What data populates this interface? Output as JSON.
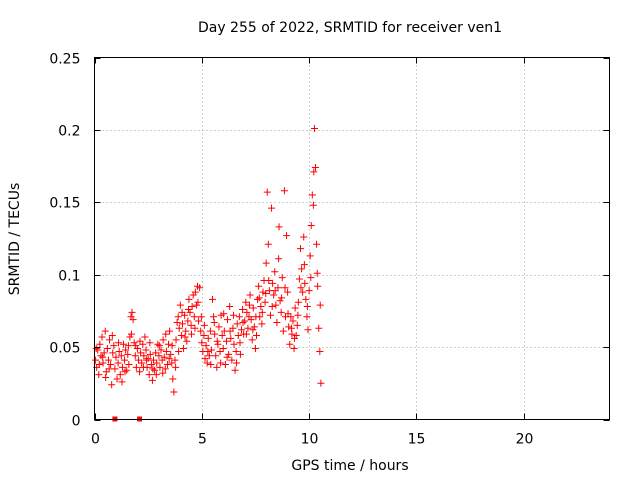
{
  "chart_data": {
    "type": "scatter",
    "title": "Day 255 of 2022, SRMTID for receiver ven1",
    "xlabel": "GPS time / hours",
    "ylabel": "SRMTID / TECUs",
    "xlim": [
      0,
      24
    ],
    "ylim": [
      0,
      0.25
    ],
    "x_ticks": [
      0,
      5,
      10,
      15,
      20
    ],
    "x_tick_labels": [
      "0",
      "5",
      "10",
      "15",
      "20"
    ],
    "y_ticks": [
      0,
      0.05,
      0.1,
      0.15,
      0.2,
      0.25
    ],
    "y_tick_labels": [
      "0",
      "0.05",
      "0.1",
      "0.15",
      "0.2",
      "0.25"
    ],
    "grid": true,
    "marker": "+",
    "colors": {
      "series": "#ff0000",
      "grid": "#a0a0a0",
      "axis": "#000000"
    },
    "baseline_markers_x": [
      0.95,
      2.1
    ],
    "series": [
      {
        "name": "ven1",
        "points": [
          [
            0.05,
            0.041
          ],
          [
            0.1,
            0.036
          ],
          [
            0.15,
            0.048
          ],
          [
            0.2,
            0.031
          ],
          [
            0.25,
            0.052
          ],
          [
            0.3,
            0.044
          ],
          [
            0.35,
            0.057
          ],
          [
            0.4,
            0.039
          ],
          [
            0.45,
            0.046
          ],
          [
            0.5,
            0.061
          ],
          [
            0.55,
            0.033
          ],
          [
            0.6,
            0.049
          ],
          [
            0.65,
            0.041
          ],
          [
            0.7,
            0.055
          ],
          [
            0.75,
            0.038
          ],
          [
            0.8,
            0.024
          ],
          [
            0.85,
            0.046
          ],
          [
            0.9,
            0.051
          ],
          [
            0.95,
            0.035
          ],
          [
            1.0,
            0.043
          ],
          [
            1.05,
            0.028
          ],
          [
            1.1,
            0.039
          ],
          [
            1.15,
            0.047
          ],
          [
            1.2,
            0.031
          ],
          [
            1.25,
            0.044
          ],
          [
            1.3,
            0.036
          ],
          [
            1.35,
            0.052
          ],
          [
            1.4,
            0.041
          ],
          [
            1.45,
            0.048
          ],
          [
            1.5,
            0.034
          ],
          [
            1.55,
            0.045
          ],
          [
            1.6,
            0.038
          ],
          [
            1.65,
            0.057
          ],
          [
            1.7,
            0.071
          ],
          [
            1.75,
            0.074
          ],
          [
            1.8,
            0.069
          ],
          [
            1.85,
            0.053
          ],
          [
            1.9,
            0.044
          ],
          [
            1.95,
            0.036
          ],
          [
            2.0,
            0.049
          ],
          [
            2.05,
            0.041
          ],
          [
            2.1,
            0.033
          ],
          [
            2.15,
            0.046
          ],
          [
            2.2,
            0.039
          ],
          [
            2.25,
            0.052
          ],
          [
            2.3,
            0.044
          ],
          [
            2.35,
            0.057
          ],
          [
            2.4,
            0.048
          ],
          [
            2.45,
            0.036
          ],
          [
            2.5,
            0.042
          ],
          [
            2.55,
            0.031
          ],
          [
            2.6,
            0.045
          ],
          [
            2.65,
            0.038
          ],
          [
            2.7,
            0.027
          ],
          [
            2.75,
            0.041
          ],
          [
            2.8,
            0.034
          ],
          [
            2.85,
            0.046
          ],
          [
            2.9,
            0.039
          ],
          [
            2.95,
            0.052
          ],
          [
            3.0,
            0.044
          ],
          [
            3.05,
            0.036
          ],
          [
            3.1,
            0.048
          ],
          [
            3.15,
            0.041
          ],
          [
            3.2,
            0.055
          ],
          [
            3.25,
            0.043
          ],
          [
            3.3,
            0.035
          ],
          [
            3.35,
            0.047
          ],
          [
            3.4,
            0.038
          ],
          [
            3.45,
            0.052
          ],
          [
            3.5,
            0.061
          ],
          [
            3.55,
            0.045
          ],
          [
            3.6,
            0.039
          ],
          [
            3.65,
            0.028
          ],
          [
            3.7,
            0.019
          ],
          [
            3.75,
            0.041
          ],
          [
            3.8,
            0.055
          ],
          [
            3.85,
            0.067
          ],
          [
            3.9,
            0.071
          ],
          [
            3.95,
            0.063
          ],
          [
            4.0,
            0.079
          ],
          [
            4.05,
            0.058
          ],
          [
            4.1,
            0.066
          ],
          [
            4.15,
            0.049
          ],
          [
            4.2,
            0.072
          ],
          [
            4.25,
            0.061
          ],
          [
            4.3,
            0.054
          ],
          [
            4.35,
            0.068
          ],
          [
            4.4,
            0.083
          ],
          [
            4.45,
            0.074
          ],
          [
            4.5,
            0.065
          ],
          [
            4.55,
            0.078
          ],
          [
            4.6,
            0.086
          ],
          [
            4.65,
            0.071
          ],
          [
            4.7,
            0.088
          ],
          [
            4.75,
            0.079
          ],
          [
            4.8,
            0.092
          ],
          [
            4.85,
            0.068
          ],
          [
            4.9,
            0.091
          ],
          [
            4.95,
            0.061
          ],
          [
            5.0,
            0.053
          ],
          [
            5.05,
            0.047
          ],
          [
            5.1,
            0.058
          ],
          [
            5.15,
            0.042
          ],
          [
            5.2,
            0.051
          ],
          [
            5.25,
            0.039
          ],
          [
            5.3,
            0.056
          ],
          [
            5.35,
            0.044
          ],
          [
            5.4,
            0.061
          ],
          [
            5.45,
            0.048
          ],
          [
            5.5,
            0.083
          ],
          [
            5.55,
            0.071
          ],
          [
            5.6,
            0.059
          ],
          [
            5.65,
            0.044
          ],
          [
            5.7,
            0.036
          ],
          [
            5.75,
            0.052
          ],
          [
            5.8,
            0.064
          ],
          [
            5.85,
            0.047
          ],
          [
            5.9,
            0.072
          ],
          [
            5.95,
            0.058
          ],
          [
            6.0,
            0.049
          ],
          [
            6.05,
            0.061
          ],
          [
            6.1,
            0.038
          ],
          [
            6.15,
            0.054
          ],
          [
            6.2,
            0.069
          ],
          [
            6.25,
            0.045
          ],
          [
            6.3,
            0.078
          ],
          [
            6.35,
            0.056
          ],
          [
            6.4,
            0.041
          ],
          [
            6.45,
            0.063
          ],
          [
            6.5,
            0.052
          ],
          [
            6.55,
            0.034
          ],
          [
            6.6,
            0.047
          ],
          [
            6.65,
            0.066
          ],
          [
            6.7,
            0.058
          ],
          [
            6.75,
            0.071
          ],
          [
            6.8,
            0.045
          ],
          [
            6.85,
            0.062
          ],
          [
            6.9,
            0.076
          ],
          [
            6.95,
            0.059
          ],
          [
            7.0,
            0.068
          ],
          [
            7.05,
            0.081
          ],
          [
            7.1,
            0.074
          ],
          [
            7.15,
            0.063
          ],
          [
            7.2,
            0.071
          ],
          [
            7.25,
            0.086
          ],
          [
            7.3,
            0.069
          ],
          [
            7.35,
            0.055
          ],
          [
            7.4,
            0.077
          ],
          [
            7.45,
            0.064
          ],
          [
            7.5,
            0.049
          ],
          [
            7.55,
            0.058
          ],
          [
            7.6,
            0.083
          ],
          [
            7.65,
            0.092
          ],
          [
            7.7,
            0.071
          ],
          [
            7.75,
            0.078
          ],
          [
            7.8,
            0.066
          ],
          [
            7.85,
            0.088
          ],
          [
            7.9,
            0.096
          ],
          [
            7.95,
            0.081
          ],
          [
            8.0,
            0.108
          ],
          [
            8.05,
            0.157
          ],
          [
            8.1,
            0.121
          ],
          [
            8.15,
            0.089
          ],
          [
            8.2,
            0.072
          ],
          [
            8.25,
            0.146
          ],
          [
            8.3,
            0.094
          ],
          [
            8.35,
            0.086
          ],
          [
            8.4,
            0.102
          ],
          [
            8.45,
            0.079
          ],
          [
            8.5,
            0.067
          ],
          [
            8.55,
            0.091
          ],
          [
            8.6,
            0.133
          ],
          [
            8.65,
            0.082
          ],
          [
            8.7,
            0.074
          ],
          [
            8.75,
            0.098
          ],
          [
            8.8,
            0.061
          ],
          [
            8.85,
            0.158
          ],
          [
            8.9,
            0.071
          ],
          [
            8.95,
            0.127
          ],
          [
            9.0,
            0.088
          ],
          [
            9.05,
            0.064
          ],
          [
            9.1,
            0.052
          ],
          [
            9.15,
            0.071
          ],
          [
            9.2,
            0.059
          ],
          [
            9.25,
            0.068
          ],
          [
            9.3,
            0.049
          ],
          [
            9.35,
            0.077
          ],
          [
            9.4,
            0.058
          ],
          [
            9.45,
            0.065
          ],
          [
            9.5,
            0.081
          ],
          [
            9.55,
            0.097
          ],
          [
            9.6,
            0.118
          ],
          [
            9.65,
            0.104
          ],
          [
            9.7,
            0.088
          ],
          [
            9.75,
            0.126
          ],
          [
            9.8,
            0.094
          ],
          [
            9.85,
            0.083
          ],
          [
            9.9,
            0.071
          ],
          [
            9.95,
            0.062
          ],
          [
            10.0,
            0.089
          ],
          [
            10.05,
            0.113
          ],
          [
            10.1,
            0.134
          ],
          [
            10.15,
            0.155
          ],
          [
            10.2,
            0.148
          ],
          [
            10.25,
            0.201
          ],
          [
            10.3,
            0.174
          ],
          [
            10.35,
            0.121
          ],
          [
            10.4,
            0.092
          ],
          [
            10.45,
            0.063
          ],
          [
            10.5,
            0.047
          ],
          [
            10.55,
            0.025
          ],
          [
            0.08,
            0.049
          ],
          [
            0.22,
            0.038
          ],
          [
            0.38,
            0.043
          ],
          [
            0.52,
            0.029
          ],
          [
            0.68,
            0.035
          ],
          [
            0.83,
            0.058
          ],
          [
            1.12,
            0.053
          ],
          [
            1.28,
            0.026
          ],
          [
            1.42,
            0.033
          ],
          [
            1.58,
            0.051
          ],
          [
            1.72,
            0.059
          ],
          [
            1.92,
            0.051
          ],
          [
            2.12,
            0.054
          ],
          [
            2.28,
            0.036
          ],
          [
            2.42,
            0.041
          ],
          [
            2.58,
            0.053
          ],
          [
            2.72,
            0.035
          ],
          [
            2.88,
            0.031
          ],
          [
            3.02,
            0.051
          ],
          [
            3.18,
            0.032
          ],
          [
            3.32,
            0.059
          ],
          [
            3.48,
            0.042
          ],
          [
            3.62,
            0.051
          ],
          [
            3.78,
            0.036
          ],
          [
            3.92,
            0.047
          ],
          [
            4.08,
            0.074
          ],
          [
            4.22,
            0.057
          ],
          [
            4.38,
            0.076
          ],
          [
            4.52,
            0.059
          ],
          [
            4.68,
            0.063
          ],
          [
            4.82,
            0.081
          ],
          [
            4.98,
            0.071
          ],
          [
            5.12,
            0.065
          ],
          [
            5.28,
            0.047
          ],
          [
            5.42,
            0.038
          ],
          [
            5.58,
            0.067
          ],
          [
            5.72,
            0.054
          ],
          [
            5.88,
            0.039
          ],
          [
            6.02,
            0.073
          ],
          [
            6.18,
            0.043
          ],
          [
            6.32,
            0.061
          ],
          [
            6.48,
            0.072
          ],
          [
            6.62,
            0.039
          ],
          [
            6.78,
            0.053
          ],
          [
            6.92,
            0.067
          ],
          [
            7.08,
            0.059
          ],
          [
            7.22,
            0.079
          ],
          [
            7.38,
            0.062
          ],
          [
            7.52,
            0.071
          ],
          [
            7.68,
            0.084
          ],
          [
            7.82,
            0.074
          ],
          [
            7.98,
            0.087
          ],
          [
            8.12,
            0.096
          ],
          [
            8.28,
            0.078
          ],
          [
            8.42,
            0.089
          ],
          [
            8.58,
            0.111
          ],
          [
            8.72,
            0.084
          ],
          [
            8.88,
            0.091
          ],
          [
            9.02,
            0.073
          ],
          [
            9.18,
            0.063
          ],
          [
            9.32,
            0.056
          ],
          [
            9.48,
            0.072
          ],
          [
            9.62,
            0.091
          ],
          [
            9.78,
            0.107
          ],
          [
            9.92,
            0.078
          ],
          [
            10.08,
            0.098
          ],
          [
            10.22,
            0.171
          ],
          [
            10.38,
            0.101
          ],
          [
            10.52,
            0.079
          ]
        ]
      }
    ]
  }
}
